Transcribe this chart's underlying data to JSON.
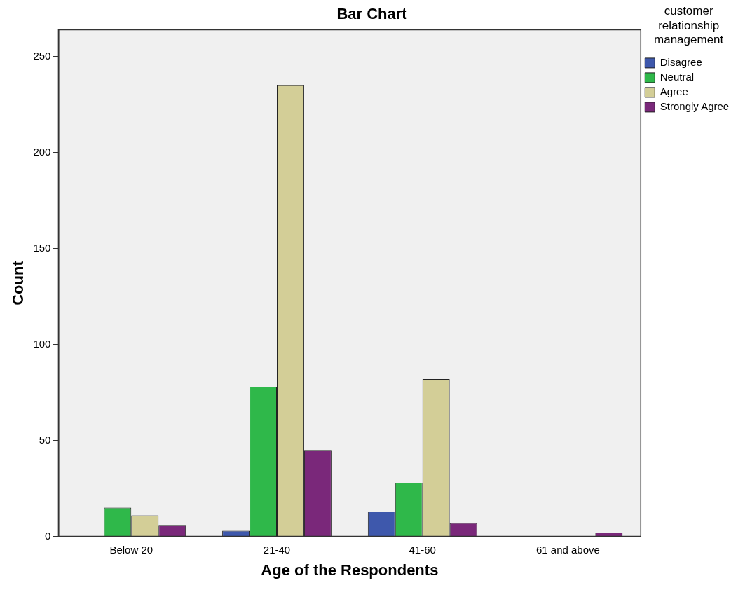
{
  "chart_data": {
    "type": "bar",
    "title": "Bar Chart",
    "xlabel": "Age of the Respondents",
    "ylabel": "Count",
    "legend_title": "customer relationship management",
    "categories": [
      "Below 20",
      "21-40",
      "41-60",
      "61 and above"
    ],
    "series": [
      {
        "name": "Disagree",
        "color": "#3e58ac",
        "values": [
          0,
          3,
          13,
          0
        ]
      },
      {
        "name": "Neutral",
        "color": "#2fb84a",
        "values": [
          15,
          78,
          28,
          0
        ]
      },
      {
        "name": "Agree",
        "color": "#d3ce97",
        "values": [
          11,
          235,
          82,
          0
        ]
      },
      {
        "name": "Strongly Agree",
        "color": "#7a287a",
        "values": [
          6,
          45,
          7,
          2
        ]
      }
    ],
    "ylim": [
      0,
      264
    ],
    "yticks": [
      0,
      50,
      100,
      150,
      200,
      250
    ],
    "grid": false,
    "legend": "right"
  }
}
